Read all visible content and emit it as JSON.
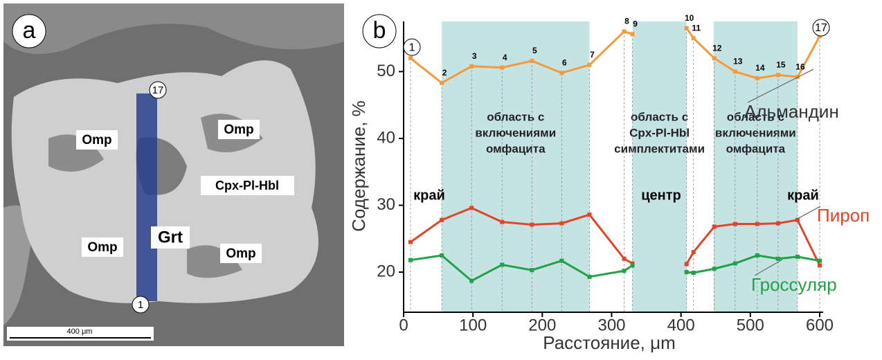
{
  "panel_a": {
    "label": "a",
    "mineral_labels": [
      "Omp",
      "Omp",
      "Omp",
      "Omp",
      "Cpx-Pl-Hbl",
      "Grt"
    ],
    "profile_ends": [
      "1",
      "17"
    ],
    "scale_bar": "400 μm"
  },
  "chart_data": {
    "type": "line",
    "panel_label": "b",
    "x_label": "Расстояние, μm",
    "y_label": "Содержание, %",
    "x": [
      10,
      55,
      98,
      142,
      185,
      228,
      268,
      318,
      330,
      null,
      408,
      418,
      448,
      478,
      510,
      540,
      568,
      600
    ],
    "point_labels": [
      "1",
      "2",
      "3",
      "4",
      "5",
      "6",
      "7",
      "8",
      "9",
      null,
      "10",
      "11",
      "12",
      "13",
      "14",
      "15",
      "16",
      "17"
    ],
    "series": [
      {
        "name": "Альмандин",
        "color": "#f39a3c",
        "values": [
          52,
          48.3,
          50.8,
          50.6,
          51.6,
          49.8,
          51,
          56,
          55.6,
          null,
          56.5,
          55,
          52,
          50,
          49,
          49.5,
          49.2,
          55.3
        ]
      },
      {
        "name": "Пироп",
        "color": "#e0452a",
        "values": [
          24.5,
          27.8,
          29.6,
          27.5,
          27.1,
          27.3,
          28.6,
          22,
          21.3,
          null,
          21.2,
          23,
          26.8,
          27.2,
          27.2,
          27.3,
          27.8,
          21
        ]
      },
      {
        "name": "Гроссуляр",
        "color": "#22a04a",
        "values": [
          21.8,
          22.5,
          18.7,
          21.1,
          20.3,
          21.7,
          19.3,
          20.2,
          21,
          null,
          20,
          19.9,
          20.5,
          21.3,
          22.5,
          22,
          22.3,
          21.7
        ]
      }
    ],
    "regions": [
      {
        "x": [
          55,
          268
        ],
        "label": [
          "область с",
          "включениями",
          "омфацита"
        ]
      },
      {
        "x": [
          330,
          408
        ],
        "label": [
          "область с",
          "Cpx-Pl-Hbl",
          "симплектитами"
        ]
      },
      {
        "x": [
          447,
          568
        ],
        "label": [
          "область с",
          "включениями",
          "омфацита"
        ]
      }
    ],
    "zone_labels": [
      "край",
      "центр",
      "край"
    ],
    "xlim": [
      0,
      600
    ],
    "ylim": [
      14,
      57.5
    ],
    "xticks": [
      0,
      100,
      200,
      300,
      400,
      500,
      600
    ],
    "yticks": [
      20,
      30,
      40,
      50
    ]
  }
}
